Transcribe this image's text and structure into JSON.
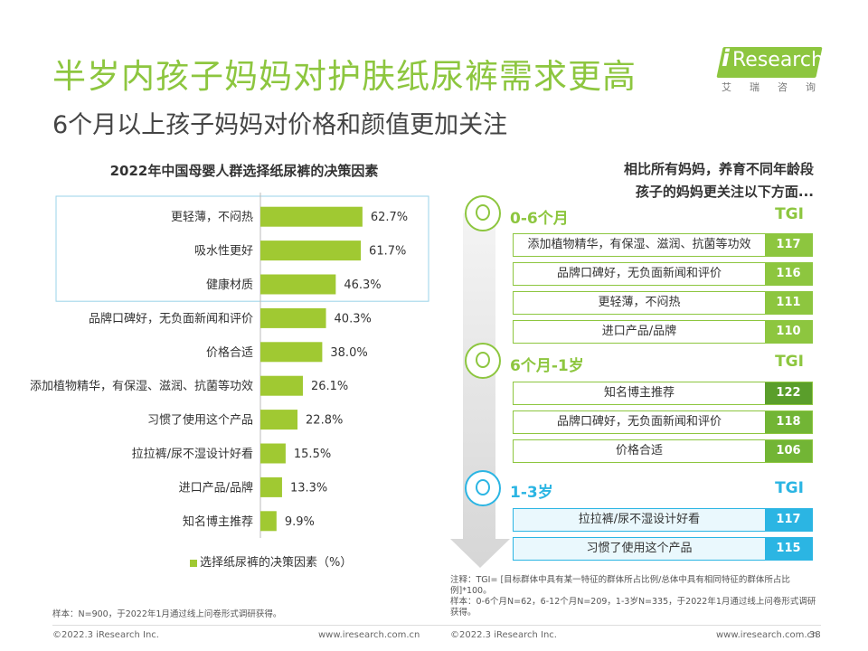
{
  "header": {
    "title_main": "半岁内孩子妈妈对护肤纸尿裤需求更高",
    "title_sub": "6个月以上孩子妈妈对价格和颜值更加关注",
    "logo_text": "Research",
    "logo_i": "i",
    "logo_sub": "艾瑞咨询"
  },
  "chart_data": {
    "type": "bar",
    "orientation": "horizontal",
    "title": "2022年中国母婴人群选择纸尿裤的决策因素",
    "categories": [
      "更轻薄，不闷热",
      "吸水性更好",
      "健康材质",
      "品牌口碑好，无负面新闻和评价",
      "价格合适",
      "添加植物精华，有保湿、滋润、抗菌等功效",
      "习惯了使用这个产品",
      "拉拉裤/尿不湿设计好看",
      "进口产品/品牌",
      "知名博主推荐"
    ],
    "values": [
      62.7,
      61.7,
      46.3,
      40.3,
      38.0,
      26.1,
      22.8,
      15.5,
      13.3,
      9.9
    ],
    "value_labels": [
      "62.7%",
      "61.7%",
      "46.3%",
      "40.3%",
      "38.0%",
      "26.1%",
      "22.8%",
      "15.5%",
      "13.3%",
      "9.9%"
    ],
    "series": [
      {
        "name": "选择纸尿裤的决策因素（%）",
        "values": [
          62.7,
          61.7,
          46.3,
          40.3,
          38.0,
          26.1,
          22.8,
          15.5,
          13.3,
          9.9
        ]
      }
    ],
    "color": "#a0c932",
    "highlight_top": 3,
    "legend_placement": "bottom"
  },
  "notes": {
    "left": "样本：N=900，于2022年1月通过线上问卷形式调研获得。",
    "right_1": "注释：TGI= [目标群体中具有某一特征的群体所占比例/总体中具有相同特征的群体所占比例]*100。",
    "right_2": "样本：0-6个月N=62，6-12个月N=209，1-3岁N=335，于2022年1月通过线上问卷形式调研获得。"
  },
  "right_panel": {
    "title_line1": "相比所有妈妈，养育不同年龄段",
    "title_line2": "孩子的妈妈更关注以下方面...",
    "tgi_label": "TGI",
    "groups": [
      {
        "label": "0-6个月",
        "items": [
          {
            "label": "添加植物精华，有保湿、滋润、抗菌等功效",
            "tgi": "117"
          },
          {
            "label": "品牌口碑好，无负面新闻和评价",
            "tgi": "116"
          },
          {
            "label": "更轻薄，不闷热",
            "tgi": "111"
          },
          {
            "label": "进口产品/品牌",
            "tgi": "110"
          }
        ]
      },
      {
        "label": "6个月-1岁",
        "items": [
          {
            "label": "知名博主推荐",
            "tgi": "122"
          },
          {
            "label": "品牌口碑好，无负面新闻和评价",
            "tgi": "118"
          },
          {
            "label": "价格合适",
            "tgi": "106"
          }
        ]
      },
      {
        "label": "1-3岁",
        "items": [
          {
            "label": "拉拉裤/尿不湿设计好看",
            "tgi": "117"
          },
          {
            "label": "习惯了使用这个产品",
            "tgi": "115"
          }
        ]
      }
    ],
    "colors": {
      "green": "#8dc63f",
      "dark_green": "#5a9e2b",
      "blue": "#2bb5e3"
    }
  },
  "footer": {
    "left_copyright": "©2022.3 iResearch Inc.",
    "left_url": "www.iresearch.com.cn",
    "right_copyright": "©2022.3 iResearch Inc.",
    "right_url": "www.iresearch.com.cn",
    "page_number": "38"
  }
}
